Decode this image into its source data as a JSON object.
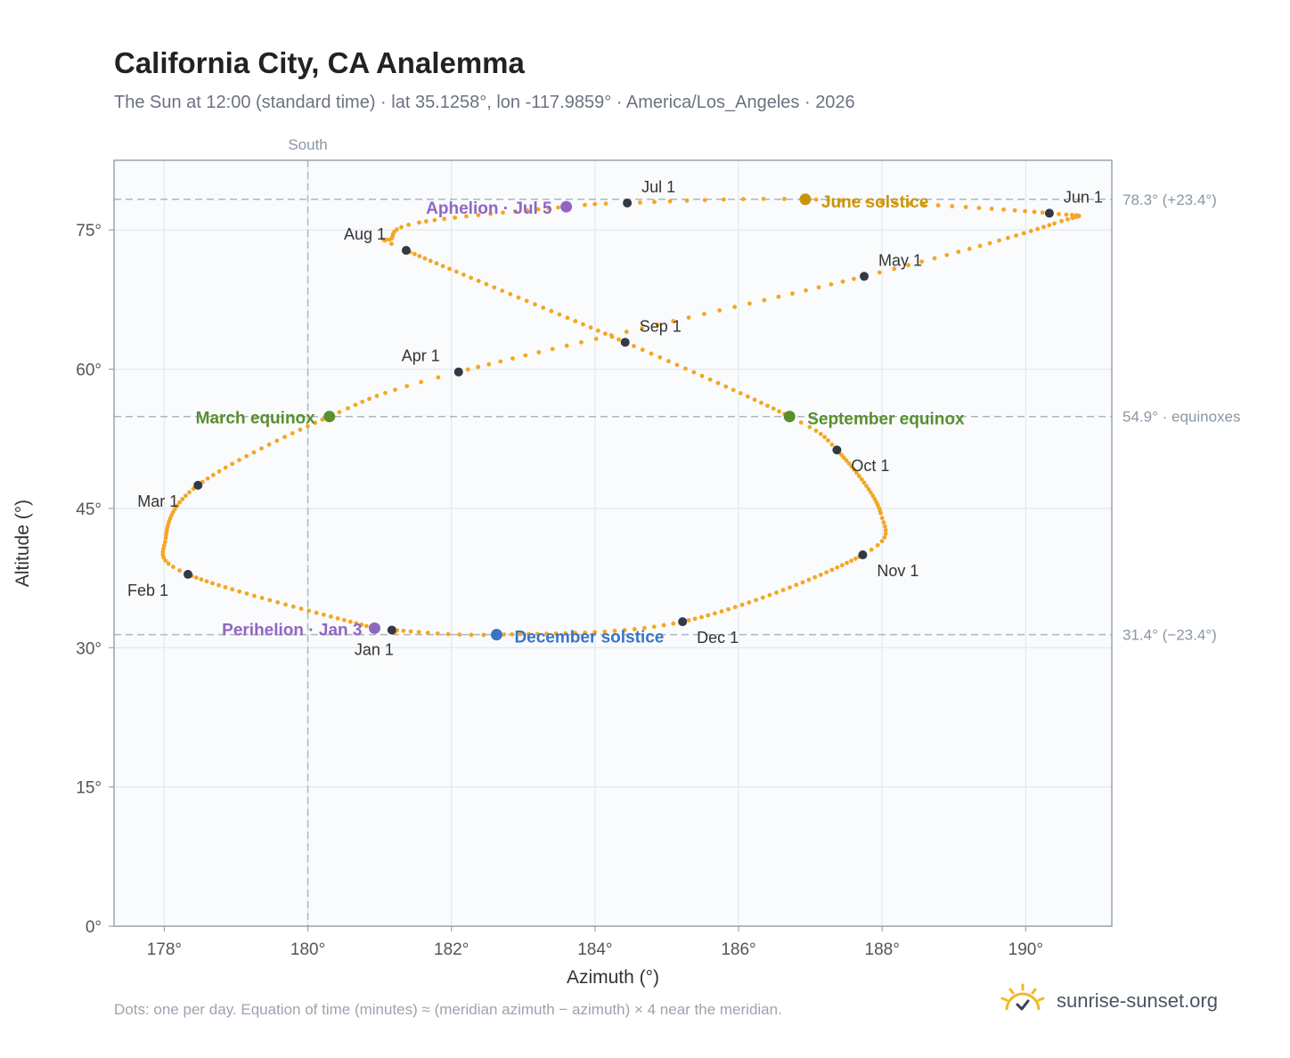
{
  "title": "California City, CA Analemma",
  "subtitle": "The Sun at 12:00 (standard time) · lat 35.1258°, lon -117.9859° · America/Los_Angeles · 2026",
  "footnote": "Dots: one per day. Equation of time (minutes) ≈ (meridian azimuth − azimuth) × 4 near the meridian.",
  "brand": {
    "name": "sunrise-sunset.org",
    "icon": "sun-logo-icon"
  },
  "chart_data": {
    "type": "scatter",
    "xlabel": "Azimuth (°)",
    "ylabel": "Altitude (°)",
    "xlim": [
      177.3,
      191.2
    ],
    "ylim": [
      0,
      82.5
    ],
    "x_ticks": [
      178,
      180,
      182,
      184,
      186,
      188,
      190
    ],
    "y_ticks": [
      0,
      15,
      30,
      45,
      60,
      75
    ],
    "x_tick_suffix": "°",
    "y_tick_suffix": "°",
    "grid": true,
    "reference_lines": [
      {
        "axis": "x",
        "value": 180,
        "label": "South"
      },
      {
        "axis": "y",
        "value": 78.3,
        "label": "78.3° (+23.4°)"
      },
      {
        "axis": "y",
        "value": 54.9,
        "label": "54.9° · equinoxes"
      },
      {
        "axis": "y",
        "value": 31.4,
        "label": "31.4° (−23.4°)"
      }
    ],
    "series": [
      {
        "marker": "small-dot",
        "color": "#f5a623",
        "anchors": [
          {
            "doy": 1,
            "x": 181.17,
            "y": 31.9
          },
          {
            "doy": 3,
            "x": 180.93,
            "y": 32.1
          },
          {
            "doy": 32,
            "x": 178.33,
            "y": 37.9
          },
          {
            "doy": 43,
            "x": 178.02,
            "y": 41.8
          },
          {
            "doy": 60,
            "x": 178.47,
            "y": 47.5
          },
          {
            "doy": 79,
            "x": 180.3,
            "y": 54.9
          },
          {
            "doy": 91,
            "x": 182.1,
            "y": 59.7
          },
          {
            "doy": 121,
            "x": 187.75,
            "y": 70.0
          },
          {
            "doy": 140,
            "x": 190.4,
            "y": 75.7
          },
          {
            "doy": 152,
            "x": 190.33,
            "y": 76.8
          },
          {
            "doy": 172,
            "x": 186.93,
            "y": 78.3
          },
          {
            "doy": 182,
            "x": 184.45,
            "y": 77.9
          },
          {
            "doy": 186,
            "x": 183.6,
            "y": 77.5
          },
          {
            "doy": 200,
            "x": 181.55,
            "y": 75.8
          },
          {
            "doy": 207,
            "x": 181.17,
            "y": 74.1
          },
          {
            "doy": 213,
            "x": 181.37,
            "y": 72.8
          },
          {
            "doy": 244,
            "x": 184.42,
            "y": 62.9
          },
          {
            "doy": 266,
            "x": 186.71,
            "y": 54.9
          },
          {
            "doy": 274,
            "x": 187.37,
            "y": 51.3
          },
          {
            "doy": 295,
            "x": 187.98,
            "y": 44.5
          },
          {
            "doy": 305,
            "x": 187.73,
            "y": 40.0
          },
          {
            "doy": 335,
            "x": 185.22,
            "y": 32.8
          },
          {
            "doy": 355,
            "x": 182.63,
            "y": 31.4
          },
          {
            "doy": 366,
            "x": 181.17,
            "y": 31.9
          }
        ]
      }
    ],
    "month_markers": [
      {
        "label": "Jan 1",
        "x": 181.17,
        "y": 31.9
      },
      {
        "label": "Feb 1",
        "x": 178.33,
        "y": 37.9
      },
      {
        "label": "Mar 1",
        "x": 178.47,
        "y": 47.5
      },
      {
        "label": "Apr 1",
        "x": 182.1,
        "y": 59.7
      },
      {
        "label": "May 1",
        "x": 187.75,
        "y": 70.0
      },
      {
        "label": "Jun 1",
        "x": 190.33,
        "y": 76.8
      },
      {
        "label": "Jul 1",
        "x": 184.45,
        "y": 77.9
      },
      {
        "label": "Aug 1",
        "x": 181.37,
        "y": 72.8
      },
      {
        "label": "Sep 1",
        "x": 184.42,
        "y": 62.9
      },
      {
        "label": "Oct 1",
        "x": 187.37,
        "y": 51.3
      },
      {
        "label": "Nov 1",
        "x": 187.73,
        "y": 40.0
      },
      {
        "label": "Dec 1",
        "x": 185.22,
        "y": 32.8
      }
    ],
    "events": [
      {
        "label": "March equinox",
        "x": 180.3,
        "y": 54.9,
        "color": "#5a8f2e"
      },
      {
        "label": "June solstice",
        "x": 186.93,
        "y": 78.3,
        "color": "#c8960c"
      },
      {
        "label": "September equinox",
        "x": 186.71,
        "y": 54.9,
        "color": "#5a8f2e"
      },
      {
        "label": "December solstice",
        "x": 182.63,
        "y": 31.4,
        "color": "#3a75c4"
      },
      {
        "label": "Perihelion · Jan 3",
        "x": 180.93,
        "y": 32.1,
        "color": "#9166c0"
      },
      {
        "label": "Aphelion · Jul 5",
        "x": 183.6,
        "y": 77.5,
        "color": "#9166c0"
      }
    ],
    "colors": {
      "path": "#f5a623",
      "month_marker": "#333a44",
      "reference": "#a9b8c2",
      "plot_background": "#f9fbfd",
      "frame": "#9aa3af"
    }
  }
}
